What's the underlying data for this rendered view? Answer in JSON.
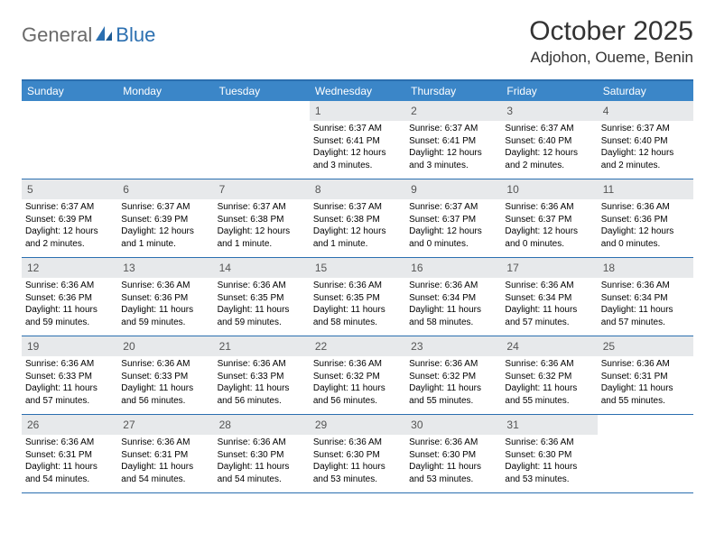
{
  "brand": {
    "text1": "General",
    "text2": "Blue"
  },
  "title": "October 2025",
  "location": "Adjohon, Oueme, Benin",
  "colors": {
    "header_bar": "#3b86c8",
    "rule": "#2b6fb0",
    "daynum_bg": "#e7e9eb",
    "logo_gray": "#6a6a6a",
    "logo_blue": "#2b6fb0"
  },
  "typography": {
    "title_fontsize": 30,
    "location_fontsize": 17,
    "dow_fontsize": 12,
    "daynum_fontsize": 12,
    "info_fontsize": 10
  },
  "dow": [
    "Sunday",
    "Monday",
    "Tuesday",
    "Wednesday",
    "Thursday",
    "Friday",
    "Saturday"
  ],
  "weeks": [
    [
      {
        "n": "",
        "sr": "",
        "ss": "",
        "dl": ""
      },
      {
        "n": "",
        "sr": "",
        "ss": "",
        "dl": ""
      },
      {
        "n": "",
        "sr": "",
        "ss": "",
        "dl": ""
      },
      {
        "n": "1",
        "sr": "Sunrise: 6:37 AM",
        "ss": "Sunset: 6:41 PM",
        "dl": "Daylight: 12 hours and 3 minutes."
      },
      {
        "n": "2",
        "sr": "Sunrise: 6:37 AM",
        "ss": "Sunset: 6:41 PM",
        "dl": "Daylight: 12 hours and 3 minutes."
      },
      {
        "n": "3",
        "sr": "Sunrise: 6:37 AM",
        "ss": "Sunset: 6:40 PM",
        "dl": "Daylight: 12 hours and 2 minutes."
      },
      {
        "n": "4",
        "sr": "Sunrise: 6:37 AM",
        "ss": "Sunset: 6:40 PM",
        "dl": "Daylight: 12 hours and 2 minutes."
      }
    ],
    [
      {
        "n": "5",
        "sr": "Sunrise: 6:37 AM",
        "ss": "Sunset: 6:39 PM",
        "dl": "Daylight: 12 hours and 2 minutes."
      },
      {
        "n": "6",
        "sr": "Sunrise: 6:37 AM",
        "ss": "Sunset: 6:39 PM",
        "dl": "Daylight: 12 hours and 1 minute."
      },
      {
        "n": "7",
        "sr": "Sunrise: 6:37 AM",
        "ss": "Sunset: 6:38 PM",
        "dl": "Daylight: 12 hours and 1 minute."
      },
      {
        "n": "8",
        "sr": "Sunrise: 6:37 AM",
        "ss": "Sunset: 6:38 PM",
        "dl": "Daylight: 12 hours and 1 minute."
      },
      {
        "n": "9",
        "sr": "Sunrise: 6:37 AM",
        "ss": "Sunset: 6:37 PM",
        "dl": "Daylight: 12 hours and 0 minutes."
      },
      {
        "n": "10",
        "sr": "Sunrise: 6:36 AM",
        "ss": "Sunset: 6:37 PM",
        "dl": "Daylight: 12 hours and 0 minutes."
      },
      {
        "n": "11",
        "sr": "Sunrise: 6:36 AM",
        "ss": "Sunset: 6:36 PM",
        "dl": "Daylight: 12 hours and 0 minutes."
      }
    ],
    [
      {
        "n": "12",
        "sr": "Sunrise: 6:36 AM",
        "ss": "Sunset: 6:36 PM",
        "dl": "Daylight: 11 hours and 59 minutes."
      },
      {
        "n": "13",
        "sr": "Sunrise: 6:36 AM",
        "ss": "Sunset: 6:36 PM",
        "dl": "Daylight: 11 hours and 59 minutes."
      },
      {
        "n": "14",
        "sr": "Sunrise: 6:36 AM",
        "ss": "Sunset: 6:35 PM",
        "dl": "Daylight: 11 hours and 59 minutes."
      },
      {
        "n": "15",
        "sr": "Sunrise: 6:36 AM",
        "ss": "Sunset: 6:35 PM",
        "dl": "Daylight: 11 hours and 58 minutes."
      },
      {
        "n": "16",
        "sr": "Sunrise: 6:36 AM",
        "ss": "Sunset: 6:34 PM",
        "dl": "Daylight: 11 hours and 58 minutes."
      },
      {
        "n": "17",
        "sr": "Sunrise: 6:36 AM",
        "ss": "Sunset: 6:34 PM",
        "dl": "Daylight: 11 hours and 57 minutes."
      },
      {
        "n": "18",
        "sr": "Sunrise: 6:36 AM",
        "ss": "Sunset: 6:34 PM",
        "dl": "Daylight: 11 hours and 57 minutes."
      }
    ],
    [
      {
        "n": "19",
        "sr": "Sunrise: 6:36 AM",
        "ss": "Sunset: 6:33 PM",
        "dl": "Daylight: 11 hours and 57 minutes."
      },
      {
        "n": "20",
        "sr": "Sunrise: 6:36 AM",
        "ss": "Sunset: 6:33 PM",
        "dl": "Daylight: 11 hours and 56 minutes."
      },
      {
        "n": "21",
        "sr": "Sunrise: 6:36 AM",
        "ss": "Sunset: 6:33 PM",
        "dl": "Daylight: 11 hours and 56 minutes."
      },
      {
        "n": "22",
        "sr": "Sunrise: 6:36 AM",
        "ss": "Sunset: 6:32 PM",
        "dl": "Daylight: 11 hours and 56 minutes."
      },
      {
        "n": "23",
        "sr": "Sunrise: 6:36 AM",
        "ss": "Sunset: 6:32 PM",
        "dl": "Daylight: 11 hours and 55 minutes."
      },
      {
        "n": "24",
        "sr": "Sunrise: 6:36 AM",
        "ss": "Sunset: 6:32 PM",
        "dl": "Daylight: 11 hours and 55 minutes."
      },
      {
        "n": "25",
        "sr": "Sunrise: 6:36 AM",
        "ss": "Sunset: 6:31 PM",
        "dl": "Daylight: 11 hours and 55 minutes."
      }
    ],
    [
      {
        "n": "26",
        "sr": "Sunrise: 6:36 AM",
        "ss": "Sunset: 6:31 PM",
        "dl": "Daylight: 11 hours and 54 minutes."
      },
      {
        "n": "27",
        "sr": "Sunrise: 6:36 AM",
        "ss": "Sunset: 6:31 PM",
        "dl": "Daylight: 11 hours and 54 minutes."
      },
      {
        "n": "28",
        "sr": "Sunrise: 6:36 AM",
        "ss": "Sunset: 6:30 PM",
        "dl": "Daylight: 11 hours and 54 minutes."
      },
      {
        "n": "29",
        "sr": "Sunrise: 6:36 AM",
        "ss": "Sunset: 6:30 PM",
        "dl": "Daylight: 11 hours and 53 minutes."
      },
      {
        "n": "30",
        "sr": "Sunrise: 6:36 AM",
        "ss": "Sunset: 6:30 PM",
        "dl": "Daylight: 11 hours and 53 minutes."
      },
      {
        "n": "31",
        "sr": "Sunrise: 6:36 AM",
        "ss": "Sunset: 6:30 PM",
        "dl": "Daylight: 11 hours and 53 minutes."
      },
      {
        "n": "",
        "sr": "",
        "ss": "",
        "dl": ""
      }
    ]
  ]
}
